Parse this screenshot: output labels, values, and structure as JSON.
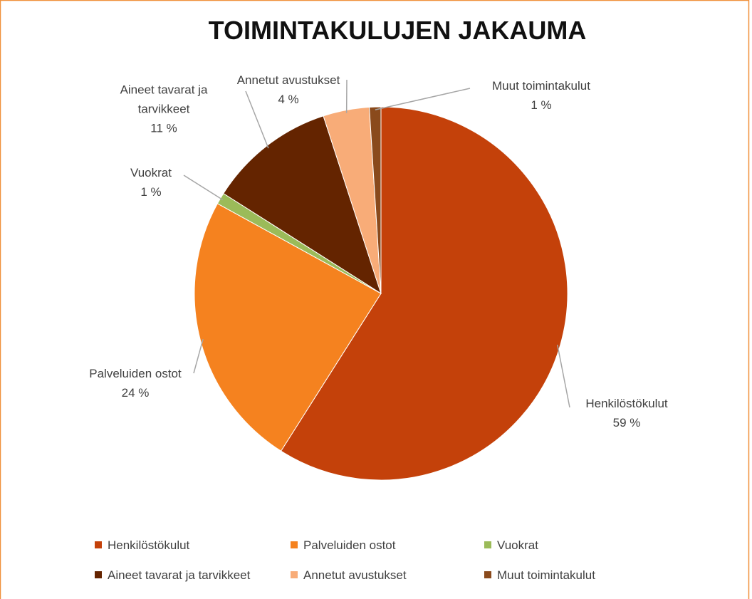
{
  "chart_data": {
    "type": "pie",
    "title": "TOIMINTAKULUJEN JAKAUMA",
    "categories": [
      "Henkilöstökulut",
      "Palveluiden ostot",
      "Vuokrat",
      "Aineet tavarat ja tarvikkeet",
      "Annetut avustukset",
      "Muut toimintakulut"
    ],
    "values": [
      59,
      24,
      1,
      11,
      4,
      1
    ],
    "value_labels": [
      "59 %",
      "24 %",
      "1 %",
      "11 %",
      "4 %",
      "1 %"
    ],
    "colors": [
      "#c4410a",
      "#f5821f",
      "#9bbb59",
      "#642400",
      "#f8ac78",
      "#8a4a1c"
    ],
    "legend": "bottom"
  }
}
